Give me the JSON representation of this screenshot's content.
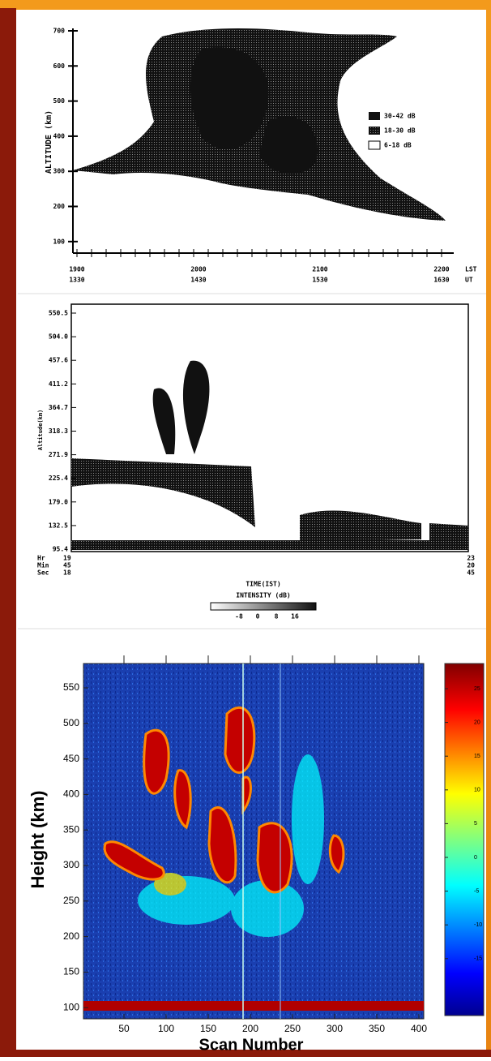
{
  "panel1": {
    "y_label": "ALTITUDE (km)",
    "yticks": [
      "700",
      "600",
      "500",
      "400",
      "300",
      "200",
      "100"
    ],
    "xticks": [
      {
        "lst": "1900",
        "ut": "1330"
      },
      {
        "lst": "2000",
        "ut": "1430"
      },
      {
        "lst": "2100",
        "ut": "1530"
      },
      {
        "lst": "2200",
        "ut": "1630"
      }
    ],
    "x_units": {
      "lst": "LST",
      "ut": "UT"
    },
    "legend": [
      "30-42 dB",
      "18-30 dB",
      "6-18 dB"
    ]
  },
  "panel2": {
    "y_label": "Altitude(km)",
    "yticks": [
      "550.5",
      "504.0",
      "457.6",
      "411.2",
      "364.7",
      "318.3",
      "271.9",
      "225.4",
      "179.0",
      "132.5",
      "95.4"
    ],
    "start_time": {
      "labels": [
        "Hr",
        "Min",
        "Sec"
      ],
      "values": [
        "19",
        "45",
        "18"
      ]
    },
    "end_time": [
      "23",
      "20",
      "45"
    ],
    "x_label": "TIME(IST)",
    "colorbar_label": "INTENSITY (dB)",
    "colorbar_ticks": [
      "-8",
      "0",
      "8",
      "16"
    ]
  },
  "panel3": {
    "y_label": "Height (km)",
    "x_label": "Scan Number",
    "yticks": [
      "550",
      "500",
      "450",
      "400",
      "350",
      "300",
      "250",
      "200",
      "150",
      "100"
    ],
    "xticks": [
      "50",
      "100",
      "150",
      "200",
      "250",
      "300",
      "350",
      "400"
    ],
    "colorbar_ticks": [
      "25",
      "20",
      "15",
      "10",
      "5",
      "0",
      "-5",
      "-10",
      "-15"
    ]
  }
}
